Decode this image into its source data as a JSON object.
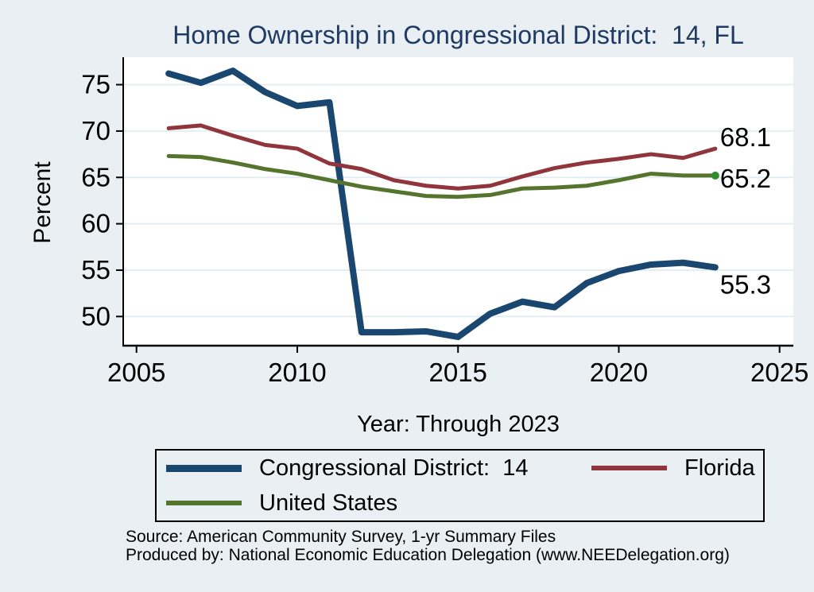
{
  "title": "Home Ownership in Congressional District:  14, FL",
  "ylabel": "Percent",
  "xlabel": "Year: Through 2023",
  "source_line1": "Source: American Community Survey, 1-yr Summary Files",
  "source_line2": "Produced by: National Economic Education Delegation (www.NEEDelegation.org)",
  "colors": {
    "background": "#e9eff2",
    "plot_background": "#ffffff",
    "gridline": "#e4eef2",
    "axis": "#000000",
    "title_text": "#1f3a63",
    "district_line": "#1a476f",
    "florida_line": "#90353b",
    "us_line": "#55752f",
    "us_end_marker": "#2d8f2d"
  },
  "chart_data": {
    "type": "line",
    "x": [
      2006,
      2007,
      2008,
      2009,
      2010,
      2011,
      2012,
      2013,
      2014,
      2015,
      2016,
      2017,
      2018,
      2019,
      2020,
      2021,
      2022,
      2023
    ],
    "series": [
      {
        "name": "Congressional District:  14",
        "color": "#1a476f",
        "end_label": "55.3",
        "values": [
          76.2,
          75.2,
          76.5,
          74.2,
          72.7,
          73.1,
          48.3,
          48.3,
          48.4,
          47.8,
          50.3,
          51.6,
          51.0,
          53.6,
          54.9,
          55.6,
          55.8,
          55.3
        ]
      },
      {
        "name": "Florida",
        "color": "#90353b",
        "end_label": "68.1",
        "values": [
          70.3,
          70.6,
          69.5,
          68.5,
          68.1,
          66.5,
          65.9,
          64.7,
          64.1,
          63.8,
          64.1,
          65.1,
          66.0,
          66.6,
          67.0,
          67.5,
          67.1,
          68.1
        ]
      },
      {
        "name": "United States",
        "color": "#55752f",
        "end_label": "65.2",
        "end_marker_color": "#2d8f2d",
        "values": [
          67.3,
          67.2,
          66.6,
          65.9,
          65.4,
          64.7,
          64.0,
          63.5,
          63.0,
          62.9,
          63.1,
          63.8,
          63.9,
          64.1,
          64.7,
          65.4,
          65.2,
          65.2
        ]
      }
    ],
    "xticks": [
      2005,
      2010,
      2015,
      2020,
      2025
    ],
    "yticks": [
      50,
      55,
      60,
      65,
      70,
      75
    ],
    "xlim": [
      2004.6,
      2025.4
    ],
    "ylim": [
      46.8,
      78.0
    ],
    "grid": "horizontal",
    "legend_position": "bottom",
    "title": "Home Ownership in Congressional District:  14, FL",
    "xlabel": "Year: Through 2023",
    "ylabel": "Percent"
  }
}
